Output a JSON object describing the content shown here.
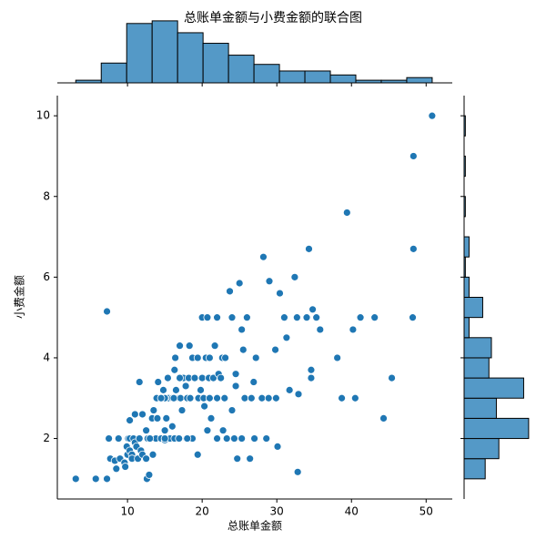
{
  "chart_data": [
    {
      "type": "scatter",
      "title": "总账单金额与小费金额的联合图",
      "xlabel": "总账单金额",
      "ylabel": "小费金额",
      "color": "#1f77b4",
      "x": [
        3.07,
        5.75,
        7.25,
        7.25,
        7.5,
        7.7,
        8.3,
        8.5,
        8.8,
        9,
        9.6,
        9.7,
        9.9,
        10,
        10.1,
        10.3,
        10.3,
        10.3,
        10.6,
        10.6,
        10.8,
        11,
        11.2,
        11.4,
        11.6,
        11.8,
        12,
        12.5,
        12.7,
        12.5,
        12,
        11,
        11.6,
        12.6,
        12.9,
        13,
        13.3,
        13.4,
        13.8,
        13.9,
        13.5,
        14,
        14.1,
        14.5,
        14.8,
        15,
        15,
        15.2,
        15.4,
        15.5,
        15.7,
        16,
        16,
        16.3,
        16.3,
        16.5,
        16.9,
        16.4,
        16.9,
        17,
        17.1,
        17.3,
        17.5,
        17.8,
        17.9,
        18,
        18.2,
        18.3,
        18.4,
        18.7,
        18.7,
        19,
        19.4,
        19.5,
        19.8,
        20,
        20.2,
        20.3,
        20.5,
        20.7,
        20.9,
        21,
        21,
        21.2,
        21.5,
        21.7,
        22,
        22,
        22.2,
        22.5,
        22.8,
        22.7,
        23,
        23.1,
        23.3,
        23.7,
        24,
        24.3,
        24.5,
        24.7,
        24.5,
        25,
        25.3,
        25.5,
        25.7,
        25.3,
        26.4,
        26.6,
        26.9,
        27,
        27.2,
        28,
        28.2,
        28.6,
        28.9,
        29,
        29.8,
        29.9,
        30.1,
        30.4,
        31,
        31.3,
        31.7,
        32.4,
        32.7,
        32.8,
        32.9,
        34,
        34.3,
        34.6,
        34.6,
        34.8,
        35.3,
        35.8,
        38.1,
        38.7,
        39.4,
        40.2,
        40.5,
        41.2,
        43.1,
        44.3,
        45.4,
        48.2,
        48.3,
        48.3,
        50.8,
        26,
        20,
        22,
        20.7,
        24,
        15,
        14.5,
        16.2,
        18,
        13,
        15,
        17,
        19.4
      ],
      "y": [
        1,
        1,
        1,
        5.15,
        2,
        1.5,
        1.45,
        1.25,
        2,
        1.5,
        1.4,
        1.3,
        1.8,
        1.6,
        2,
        2.45,
        1.7,
        2,
        1.6,
        1.5,
        2,
        1.9,
        1.8,
        1.5,
        2,
        1.7,
        1.6,
        1.5,
        2,
        2.2,
        2.6,
        2.6,
        3.4,
        1,
        1.1,
        2,
        2.5,
        1.6,
        2,
        3,
        2.7,
        2.5,
        3.4,
        2,
        3.2,
        1.96,
        2.2,
        2.5,
        3.5,
        3,
        2,
        2.3,
        3,
        2,
        3.7,
        3.2,
        3,
        4,
        2,
        4.3,
        3,
        2.7,
        3.5,
        3.3,
        2,
        3,
        3.5,
        4.3,
        3,
        2,
        4,
        3.5,
        1.6,
        3,
        3.2,
        3.5,
        3,
        2.8,
        4,
        2.2,
        3.5,
        3,
        4,
        2.5,
        3.5,
        4.3,
        2,
        3,
        3.6,
        3.5,
        2.2,
        4,
        3,
        4,
        2,
        5.65,
        2.7,
        2,
        3.6,
        1.5,
        3.3,
        5.85,
        4.7,
        4.2,
        3,
        2,
        1.5,
        3,
        3.4,
        2,
        4,
        3,
        6.5,
        2,
        3,
        5.9,
        4.2,
        3,
        1.8,
        5.6,
        5,
        4.5,
        3.2,
        6,
        5,
        1.17,
        3.1,
        5,
        6.7,
        3.5,
        3.7,
        5.2,
        5,
        4.7,
        4,
        3,
        7.6,
        4.7,
        3,
        5,
        5,
        2.5,
        3.5,
        5,
        9,
        6.7,
        10,
        5,
        5,
        5,
        5,
        5,
        3,
        3,
        3,
        2,
        2,
        2,
        3.5,
        4
      ],
      "xlim": [
        0.6,
        53.5
      ],
      "ylim": [
        0.5,
        10.5
      ],
      "xticks": [
        10,
        20,
        30,
        40,
        50
      ],
      "yticks": [
        2,
        4,
        6,
        8,
        10
      ]
    },
    {
      "type": "histogram",
      "orientation": "vertical",
      "color": "#5499c7",
      "bins": [
        3.07,
        6.48,
        9.89,
        13.3,
        16.71,
        20.12,
        23.53,
        26.94,
        30.35,
        33.76,
        37.17,
        40.58,
        43.99,
        47.4,
        50.81
      ],
      "values": [
        2,
        15,
        45,
        47,
        38,
        30,
        21,
        14,
        9,
        9,
        6,
        2,
        2,
        4
      ],
      "ylim": [
        0,
        49
      ]
    },
    {
      "type": "histogram",
      "orientation": "horizontal",
      "color": "#5499c7",
      "bins": [
        1,
        1.5,
        2,
        2.5,
        3,
        3.5,
        4,
        4.5,
        5,
        5.5,
        6,
        6.5,
        7,
        7.5,
        8,
        8.5,
        9,
        9.5,
        10
      ],
      "values": [
        17,
        28,
        52,
        26,
        48,
        20,
        22,
        4,
        15,
        4,
        1,
        4,
        0,
        1,
        0,
        1,
        0,
        1
      ],
      "xlim": [
        0,
        55
      ]
    }
  ]
}
